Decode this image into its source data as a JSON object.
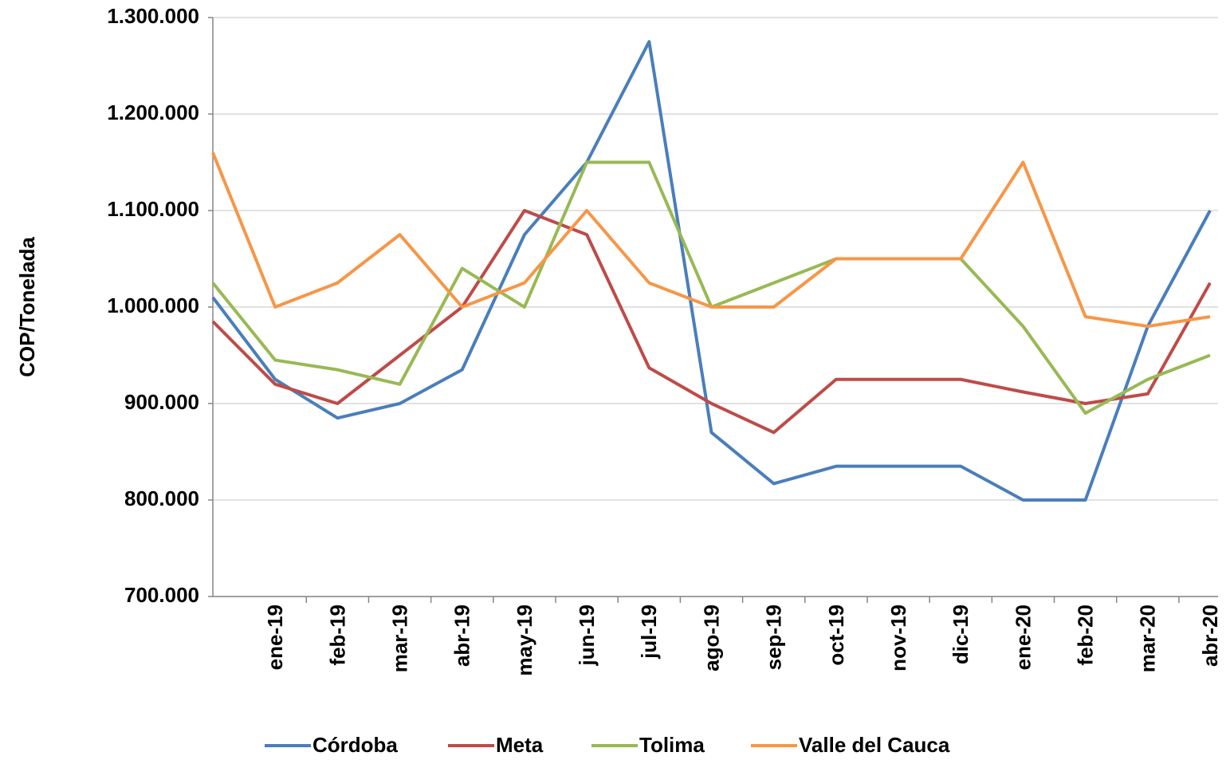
{
  "chart_data": {
    "type": "line",
    "y_label": "COP/Tonelada",
    "categories": [
      null,
      "ene-19",
      "feb-19",
      "mar-19",
      "abr-19",
      "may-19",
      "jun-19",
      "jul-19",
      "ago-19",
      "sep-19",
      "oct-19",
      "nov-19",
      "dic-19",
      "ene-20",
      "feb-20",
      "mar-20",
      "abr-20"
    ],
    "series": [
      {
        "name": "Córdoba",
        "color": "#4a7ebb",
        "values": [
          1010000,
          925000,
          885000,
          900000,
          935000,
          1075000,
          1150000,
          1275000,
          870000,
          817000,
          835000,
          835000,
          835000,
          800000,
          800000,
          980000,
          1100000
        ]
      },
      {
        "name": "Meta",
        "color": "#be4b48",
        "values": [
          985000,
          920000,
          900000,
          950000,
          1000000,
          1100000,
          1075000,
          937000,
          900000,
          870000,
          925000,
          925000,
          925000,
          912000,
          900000,
          910000,
          1025000
        ]
      },
      {
        "name": "Tolima",
        "color": "#98b954",
        "values": [
          1025000,
          945000,
          935000,
          920000,
          1040000,
          1000000,
          1150000,
          1150000,
          1000000,
          1025000,
          1050000,
          1050000,
          1050000,
          980000,
          890000,
          925000,
          950000
        ]
      },
      {
        "name": "Valle del Cauca",
        "color": "#f79646",
        "values": [
          1160000,
          1000000,
          1025000,
          1075000,
          1000000,
          1025000,
          1100000,
          1025000,
          1000000,
          1000000,
          1050000,
          1050000,
          1050000,
          1150000,
          990000,
          980000,
          990000
        ]
      }
    ],
    "ylim": [
      700000,
      1300000
    ],
    "yticks": [
      {
        "value": 700000,
        "label": "700.000"
      },
      {
        "value": 800000,
        "label": "800.000"
      },
      {
        "value": 900000,
        "label": "900.000"
      },
      {
        "value": 1000000,
        "label": "1.000.000"
      },
      {
        "value": 1100000,
        "label": "1.100.000"
      },
      {
        "value": 1200000,
        "label": "1.200.000"
      },
      {
        "value": 1300000,
        "label": "1.300.000"
      }
    ],
    "grid": true,
    "legend": "bottom"
  }
}
